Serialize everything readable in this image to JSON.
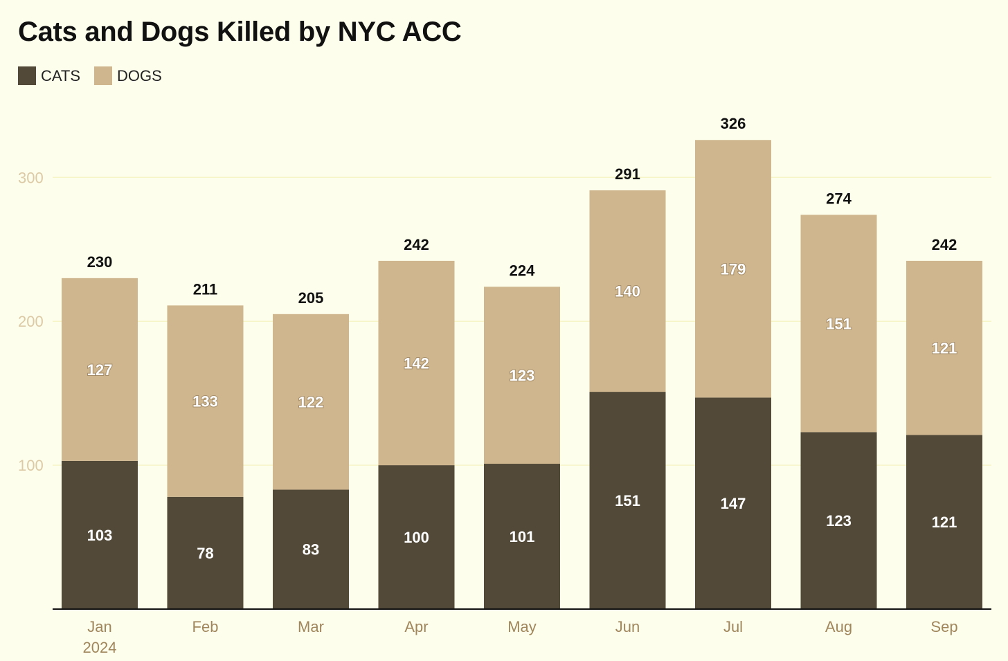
{
  "colors": {
    "background": "#fefeec",
    "cats": "#524938",
    "dogs": "#cfb68e",
    "axis_text": "#a0865c",
    "y_tick_text": "#dccaa6",
    "gridline": "#f6f5c8",
    "baseline": "#111111"
  },
  "chart_data": {
    "type": "bar",
    "stacked": true,
    "title": "Cats and Dogs Killed by NYC ACC",
    "xlabel": "",
    "ylabel": "",
    "legend_position": "top-left",
    "categories": [
      "Jan",
      "Feb",
      "Mar",
      "Apr",
      "May",
      "Jun",
      "Jul",
      "Aug",
      "Sep"
    ],
    "category_sublabels": [
      "2024",
      "",
      "",
      "",
      "",
      "",
      "",
      "",
      ""
    ],
    "series": [
      {
        "name": "CATS",
        "values": [
          103,
          78,
          83,
          100,
          101,
          151,
          147,
          123,
          121
        ]
      },
      {
        "name": "DOGS",
        "values": [
          127,
          133,
          122,
          142,
          123,
          140,
          179,
          151,
          121
        ]
      }
    ],
    "totals": [
      230,
      211,
      205,
      242,
      224,
      291,
      326,
      274,
      242
    ],
    "ylim": [
      0,
      326
    ],
    "yticks": [
      100,
      200,
      300
    ],
    "grid": true
  }
}
